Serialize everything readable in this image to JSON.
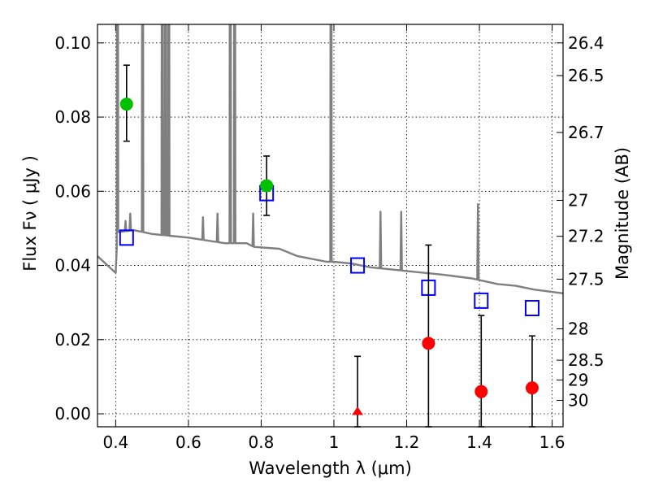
{
  "chart_data": {
    "type": "scatter",
    "xlabel": "Wavelength  λ (μm)",
    "ylabel": "Flux  Fν  ( μJy )",
    "y2label": "Magnitude (AB)",
    "xlim": [
      0.35,
      1.63
    ],
    "ylim": [
      -0.0035,
      0.105
    ],
    "grid": true,
    "x_ticks": [
      {
        "value": 0.4,
        "label": "0.4"
      },
      {
        "value": 0.6,
        "label": "0.6"
      },
      {
        "value": 0.8,
        "label": "0.8"
      },
      {
        "value": 1.0,
        "label": "1"
      },
      {
        "value": 1.2,
        "label": "1.2"
      },
      {
        "value": 1.4,
        "label": "1.4"
      },
      {
        "value": 1.6,
        "label": "1.6"
      }
    ],
    "y_ticks": [
      {
        "value": 0.0,
        "label": "0.00"
      },
      {
        "value": 0.02,
        "label": "0.02"
      },
      {
        "value": 0.04,
        "label": "0.04"
      },
      {
        "value": 0.06,
        "label": "0.06"
      },
      {
        "value": 0.08,
        "label": "0.08"
      },
      {
        "value": 0.1,
        "label": "0.10"
      }
    ],
    "mag_ticks": [
      {
        "mag": 26.4,
        "label": "26.4"
      },
      {
        "mag": 26.5,
        "label": "26.5"
      },
      {
        "mag": 26.7,
        "label": "26.7"
      },
      {
        "mag": 27.0,
        "label": "27"
      },
      {
        "mag": 27.2,
        "label": "27.2"
      },
      {
        "mag": 27.5,
        "label": "27.5"
      },
      {
        "mag": 28.0,
        "label": "28"
      },
      {
        "mag": 28.5,
        "label": "28.5"
      },
      {
        "mag": 29.0,
        "label": "29"
      },
      {
        "mag": 30.0,
        "label": "30"
      }
    ],
    "model_spectrum": {
      "color": "#7f7f7f",
      "continuum": [
        [
          0.35,
          0.0425
        ],
        [
          0.4,
          0.038
        ],
        [
          0.405,
          0.049
        ],
        [
          0.45,
          0.0495
        ],
        [
          0.5,
          0.0485
        ],
        [
          0.6,
          0.0475
        ],
        [
          0.7,
          0.046
        ],
        [
          0.76,
          0.046
        ],
        [
          0.78,
          0.045
        ],
        [
          0.85,
          0.0445
        ],
        [
          0.9,
          0.0425
        ],
        [
          0.98,
          0.041
        ],
        [
          1.0,
          0.041
        ],
        [
          1.05,
          0.0405
        ],
        [
          1.1,
          0.0395
        ],
        [
          1.2,
          0.0385
        ],
        [
          1.3,
          0.0375
        ],
        [
          1.38,
          0.0365
        ],
        [
          1.45,
          0.035
        ],
        [
          1.5,
          0.0345
        ],
        [
          1.55,
          0.0335
        ],
        [
          1.63,
          0.0325
        ]
      ],
      "emission_lines": [
        {
          "x": 0.405,
          "peak": 0.25
        },
        {
          "x": 0.427,
          "peak": 0.052
        },
        {
          "x": 0.44,
          "peak": 0.054
        },
        {
          "x": 0.474,
          "peak": 0.25
        },
        {
          "x": 0.528,
          "peak": 0.25
        },
        {
          "x": 0.537,
          "peak": 0.25
        },
        {
          "x": 0.546,
          "peak": 0.25
        },
        {
          "x": 0.64,
          "peak": 0.053
        },
        {
          "x": 0.68,
          "peak": 0.054
        },
        {
          "x": 0.715,
          "peak": 0.25
        },
        {
          "x": 0.727,
          "peak": 0.25
        },
        {
          "x": 0.778,
          "peak": 0.054
        },
        {
          "x": 0.992,
          "peak": 0.25
        },
        {
          "x": 1.128,
          "peak": 0.0545
        },
        {
          "x": 1.185,
          "peak": 0.0545
        },
        {
          "x": 1.396,
          "peak": 0.0565
        }
      ]
    },
    "series": [
      {
        "marker": "square-open",
        "color": "#0000ff",
        "points": [
          {
            "x": 0.43,
            "y": 0.0475
          },
          {
            "x": 0.815,
            "y": 0.0595
          },
          {
            "x": 1.065,
            "y": 0.04
          },
          {
            "x": 1.26,
            "y": 0.034
          },
          {
            "x": 1.405,
            "y": 0.0305
          },
          {
            "x": 1.545,
            "y": 0.0285
          }
        ]
      },
      {
        "marker": "circle",
        "color": "#00c000",
        "points": [
          {
            "x": 0.43,
            "y": 0.0835,
            "yerr_low": 0.0735,
            "yerr_high": 0.094
          },
          {
            "x": 0.815,
            "y": 0.0615,
            "yerr_low": 0.0535,
            "yerr_high": 0.0695
          }
        ]
      },
      {
        "marker": "circle",
        "color": "#ff0000",
        "points": [
          {
            "x": 1.26,
            "y": 0.019,
            "yerr_low": -0.0035,
            "yerr_high": 0.0455
          },
          {
            "x": 1.405,
            "y": 0.006,
            "yerr_low": -0.0035,
            "yerr_high": 0.0265
          },
          {
            "x": 1.545,
            "y": 0.007,
            "yerr_low": -0.0035,
            "yerr_high": 0.021
          }
        ]
      },
      {
        "marker": "triangle",
        "color": "#ff0000",
        "points": [
          {
            "x": 1.065,
            "y": 0.0,
            "yerr_low": -0.0035,
            "yerr_high": 0.0155
          }
        ]
      }
    ]
  }
}
